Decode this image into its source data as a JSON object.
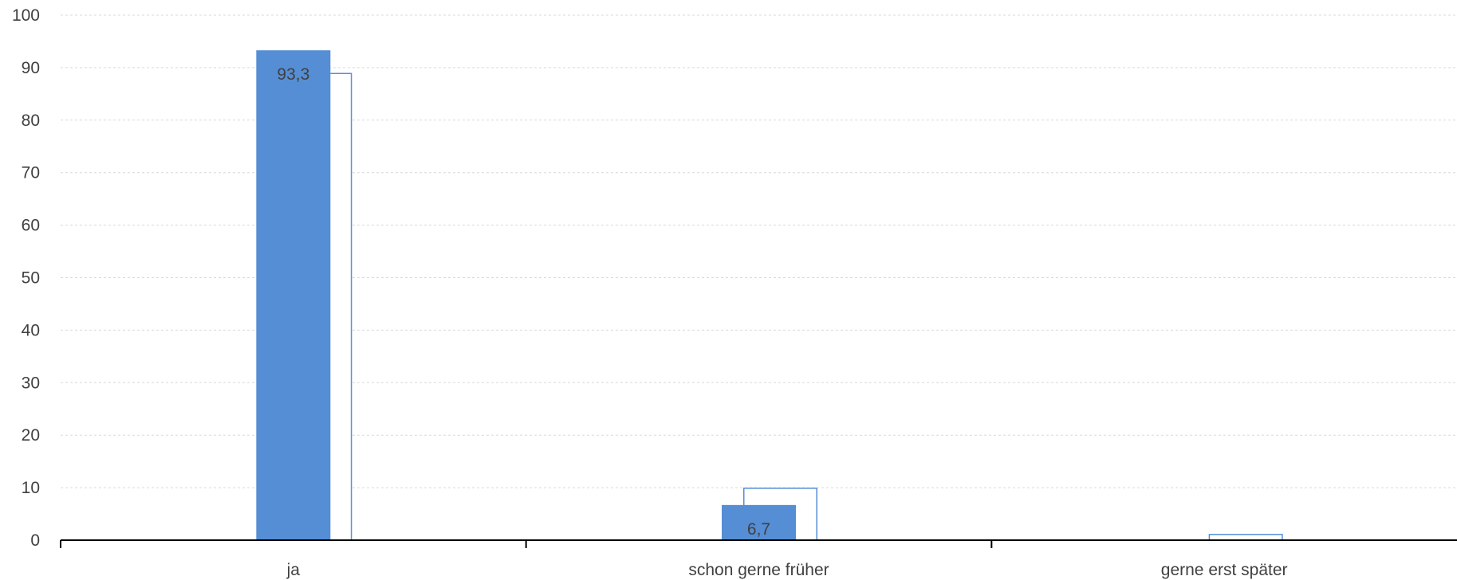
{
  "chart_data": {
    "type": "bar",
    "categories": [
      "ja",
      "schon gerne früher",
      "gerne erst später"
    ],
    "series": [
      {
        "values": [
          93.3,
          6.7,
          0
        ],
        "data_labels": [
          "93,3",
          "6,7",
          ""
        ],
        "style": "filled",
        "color": "#558ED5"
      },
      {
        "values": [
          89,
          10,
          1.2
        ],
        "style": "outline",
        "color": "#558ED5"
      }
    ],
    "ylim": [
      0,
      100
    ],
    "yticks": [
      0,
      10,
      20,
      30,
      40,
      50,
      60,
      70,
      80,
      90,
      100
    ],
    "grid": true,
    "legend": "none",
    "title": "",
    "xlabel": "",
    "ylabel": ""
  }
}
